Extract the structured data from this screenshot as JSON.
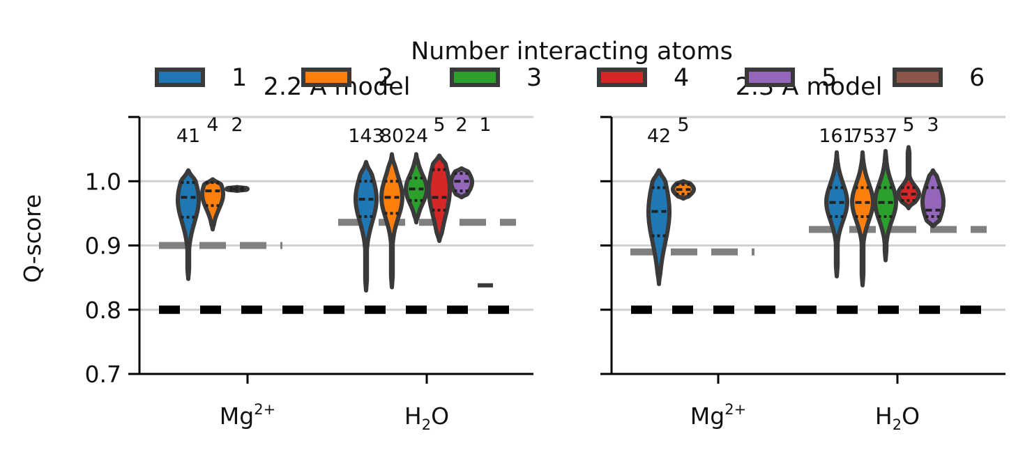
{
  "legend": {
    "title": "Number interacting atoms",
    "items": [
      {
        "label": "1",
        "color": "#1f77b4"
      },
      {
        "label": "2",
        "color": "#ff7f0e"
      },
      {
        "label": "3",
        "color": "#2ca02c"
      },
      {
        "label": "4",
        "color": "#d62728"
      },
      {
        "label": "5",
        "color": "#9467bd"
      },
      {
        "label": "6",
        "color": "#8c564b"
      }
    ]
  },
  "chart_data": [
    {
      "type": "violin",
      "title": "2.2 Å model",
      "ylabel": "Q-score",
      "ylim": [
        0.7,
        1.1
      ],
      "yticks": [
        "0.7",
        "0.8",
        "0.9",
        "1.0"
      ],
      "grid": "horizontal",
      "categories": [
        "Mg2+",
        "H2O"
      ],
      "category_labels": [
        {
          "base": "Mg",
          "sup": "2+"
        },
        {
          "base": "H",
          "sub": "2",
          "tail": "O"
        }
      ],
      "threshold_line": 0.8,
      "category_mean_lines": {
        "Mg2+": 0.9,
        "H2O": 0.936
      },
      "groups": [
        {
          "category": "Mg2+",
          "atoms": "1",
          "count": 41,
          "min": 0.848,
          "max": 1.017,
          "q1": 0.944,
          "median": 0.975,
          "q3": 0.998
        },
        {
          "category": "Mg2+",
          "atoms": "2",
          "count": 4,
          "min": 0.925,
          "max": 1.003,
          "q1": 0.962,
          "median": 0.985,
          "q3": 0.998
        },
        {
          "category": "Mg2+",
          "atoms": "3",
          "count": 2,
          "min": 0.985,
          "max": 0.991,
          "q1": 0.986,
          "median": 0.988,
          "q3": 0.99
        },
        {
          "category": "H2O",
          "atoms": "1",
          "count": 143,
          "min": 0.83,
          "max": 1.03,
          "q1": 0.945,
          "median": 0.972,
          "q3": 1.0
        },
        {
          "category": "H2O",
          "atoms": "2",
          "count": 80,
          "min": 0.835,
          "max": 1.042,
          "q1": 0.95,
          "median": 0.975,
          "q3": 1.0
        },
        {
          "category": "H2O",
          "atoms": "3",
          "count": 24,
          "min": 0.936,
          "max": 1.042,
          "q1": 0.97,
          "median": 0.988,
          "q3": 1.005
        },
        {
          "category": "H2O",
          "atoms": "4",
          "count": 5,
          "min": 0.907,
          "max": 1.04,
          "q1": 0.955,
          "median": 0.975,
          "q3": 1.018
        },
        {
          "category": "H2O",
          "atoms": "5",
          "count": 2,
          "min": 0.975,
          "max": 1.02,
          "q1": 0.985,
          "median": 1.0,
          "q3": 1.012
        },
        {
          "category": "H2O",
          "atoms": "6",
          "count": 1,
          "min": 0.838,
          "max": 0.838,
          "q1": 0.838,
          "median": 0.838,
          "q3": 0.838
        }
      ]
    },
    {
      "type": "violin",
      "title": "2.3 Å model",
      "ylabel": "",
      "ylim": [
        0.7,
        1.1
      ],
      "yticks": [
        "0.7",
        "0.8",
        "0.9",
        "1.0"
      ],
      "grid": "horizontal",
      "categories": [
        "Mg2+",
        "H2O"
      ],
      "category_labels": [
        {
          "base": "Mg",
          "sup": "2+"
        },
        {
          "base": "H",
          "sub": "2",
          "tail": "O"
        }
      ],
      "threshold_line": 0.8,
      "category_mean_lines": {
        "Mg2+": 0.89,
        "H2O": 0.925
      },
      "groups": [
        {
          "category": "Mg2+",
          "atoms": "1",
          "count": 42,
          "min": 0.84,
          "max": 1.017,
          "q1": 0.915,
          "median": 0.953,
          "q3": 0.99
        },
        {
          "category": "Mg2+",
          "atoms": "2",
          "count": 5,
          "min": 0.973,
          "max": 1.0,
          "q1": 0.98,
          "median": 0.987,
          "q3": 0.995
        },
        {
          "category": "H2O",
          "atoms": "1",
          "count": 161,
          "min": 0.852,
          "max": 1.045,
          "q1": 0.945,
          "median": 0.967,
          "q3": 0.99
        },
        {
          "category": "H2O",
          "atoms": "2",
          "count": 75,
          "min": 0.838,
          "max": 1.045,
          "q1": 0.945,
          "median": 0.967,
          "q3": 0.99
        },
        {
          "category": "H2O",
          "atoms": "3",
          "count": 37,
          "min": 0.877,
          "max": 1.047,
          "q1": 0.945,
          "median": 0.967,
          "q3": 0.99
        },
        {
          "category": "H2O",
          "atoms": "4",
          "count": 5,
          "min": 0.958,
          "max": 1.053,
          "q1": 0.97,
          "median": 0.98,
          "q3": 0.99
        },
        {
          "category": "H2O",
          "atoms": "5",
          "count": 3,
          "min": 0.93,
          "max": 1.017,
          "q1": 0.945,
          "median": 0.955,
          "q3": 0.99
        }
      ]
    }
  ]
}
